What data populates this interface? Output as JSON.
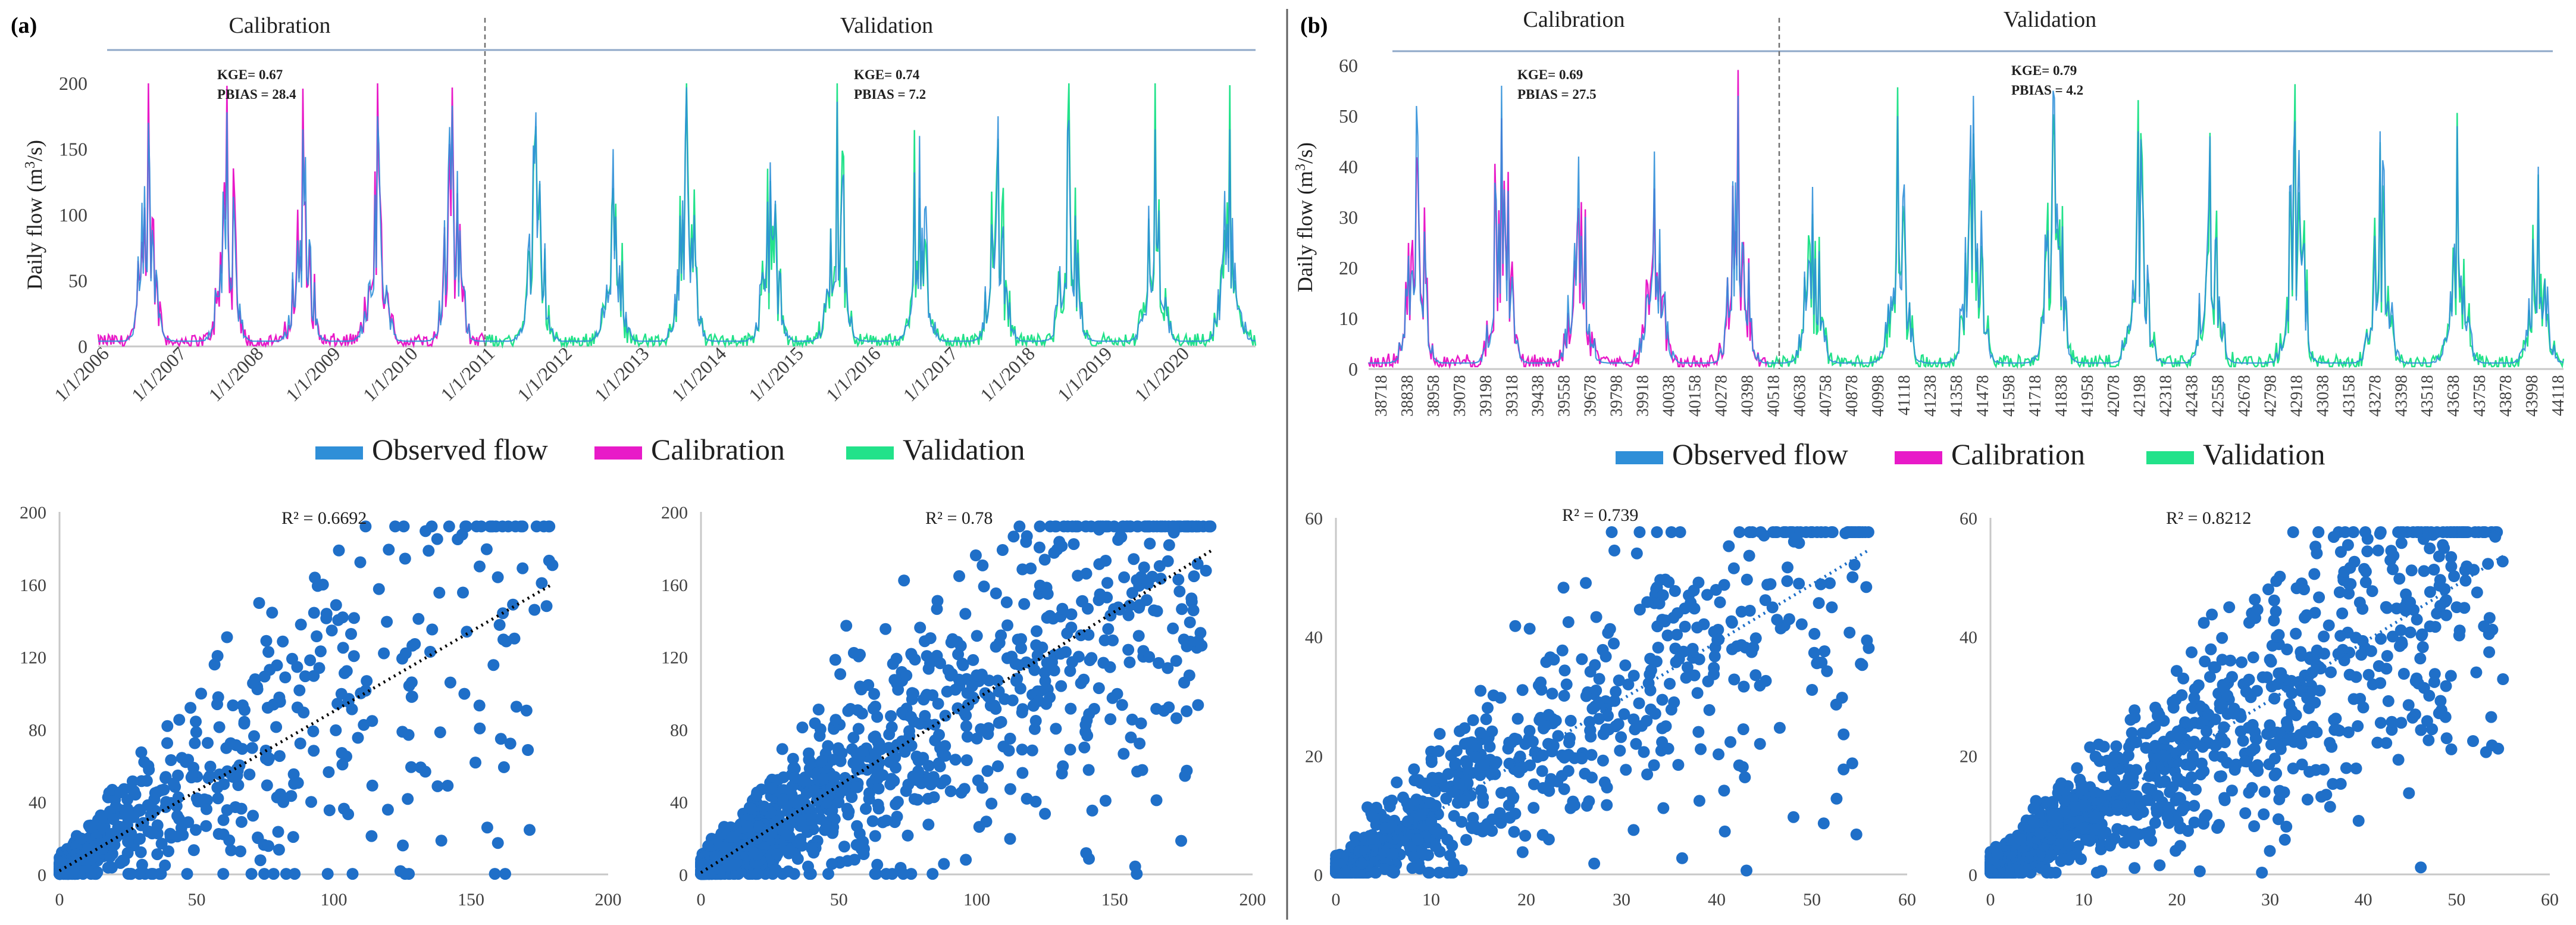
{
  "panels": [
    {
      "label": "(a)",
      "period_labels": {
        "calibration": "Calibration",
        "validation": "Validation"
      },
      "time_series": {
        "type": "line",
        "ylabel_prefix": "Daily flow (m",
        "ylabel_sup": "3",
        "ylabel_suffix": "/s)",
        "ylim": [
          0,
          200
        ],
        "yticks": [
          "0",
          "50",
          "100",
          "150",
          "200"
        ],
        "xlabels": [
          "1/1/2006",
          "1/1/2007",
          "1/1/2008",
          "1/1/2009",
          "1/1/2010",
          "1/1/2011",
          "1/1/2012",
          "1/1/2013",
          "1/1/2014",
          "1/1/2015",
          "1/1/2016",
          "1/1/2017",
          "1/1/2018",
          "1/1/2019",
          "1/1/2020"
        ],
        "n_years": 15,
        "split_year_index": 5,
        "calibration_peaks": [
          170,
          178,
          165,
          175,
          183
        ],
        "validation_peaks": [
          178,
          150,
          197,
          140,
          186,
          160,
          175,
          172,
          165,
          165
        ],
        "stats": [
          {
            "kge": "KGE= 0.67",
            "pbias": "PBIAS = 28.4"
          },
          {
            "kge": "KGE= 0.74",
            "pbias": "PBIAS = 7.2"
          }
        ],
        "legend": [
          "Observed flow",
          "Calibration",
          "Validation"
        ]
      },
      "scatters": [
        {
          "type": "scatter",
          "r2_label": "R² = 0.6692",
          "xlim": [
            0,
            200
          ],
          "ylim": [
            0,
            200
          ],
          "xticks": [
            "0",
            "50",
            "100",
            "150",
            "200"
          ],
          "yticks": [
            "0",
            "40",
            "80",
            "120",
            "160",
            "200"
          ],
          "trend": {
            "slope": 0.88,
            "intercept": 2
          },
          "n_points": 600,
          "max_x": 180,
          "spread": 0.45
        },
        {
          "type": "scatter",
          "r2_label": "R² = 0.78",
          "xlim": [
            0,
            200
          ],
          "ylim": [
            0,
            200
          ],
          "xticks": [
            "0",
            "50",
            "100",
            "150",
            "200"
          ],
          "yticks": [
            "0",
            "40",
            "80",
            "120",
            "160",
            "200"
          ],
          "trend": {
            "slope": 0.96,
            "intercept": 1
          },
          "n_points": 1400,
          "max_x": 185,
          "spread": 0.38
        }
      ]
    },
    {
      "label": "(b)",
      "period_labels": {
        "calibration": "Calibration",
        "validation": "Validation"
      },
      "time_series": {
        "type": "line",
        "ylabel_prefix": "Daily flow (m",
        "ylabel_sup": "3",
        "ylabel_suffix": "/s)",
        "ylim": [
          0,
          60
        ],
        "yticks": [
          "0",
          "10",
          "20",
          "30",
          "40",
          "50",
          "60"
        ],
        "xlabels": [
          "38718",
          "38838",
          "38958",
          "39078",
          "39198",
          "39318",
          "39438",
          "39558",
          "39678",
          "39798",
          "39918",
          "40038",
          "40158",
          "40278",
          "40398",
          "40518",
          "40638",
          "40758",
          "40878",
          "40998",
          "41118",
          "41238",
          "41358",
          "41478",
          "41598",
          "41718",
          "41838",
          "41958",
          "42078",
          "42198",
          "42318",
          "42438",
          "42558",
          "42678",
          "42798",
          "42918",
          "43038",
          "43158",
          "43278",
          "43398",
          "43518",
          "43638",
          "43758",
          "43878",
          "43998",
          "44118"
        ],
        "n_years": 15,
        "split_year_index": 5,
        "calibration_peaks": [
          52,
          56,
          42,
          43,
          54
        ],
        "validation_peaks": [
          36,
          50,
          54,
          55,
          47,
          46,
          49,
          47,
          48,
          40
        ],
        "stats": [
          {
            "kge": "KGE= 0.69",
            "pbias": "PBIAS = 27.5"
          },
          {
            "kge": "KGE= 0.79",
            "pbias": "PBIAS = 4.2"
          }
        ],
        "legend": [
          "Observed flow",
          "Calibration",
          "Validation"
        ]
      },
      "scatters": [
        {
          "type": "scatter",
          "r2_label": "R² = 0.739",
          "xlim": [
            0,
            60
          ],
          "ylim": [
            0,
            60
          ],
          "xticks": [
            "0",
            "10",
            "20",
            "30",
            "40",
            "50",
            "60"
          ],
          "yticks": [
            "0",
            "20",
            "40",
            "60"
          ],
          "trend": {
            "slope": 0.97,
            "intercept": 0.3
          },
          "n_points": 900,
          "max_x": 56,
          "spread": 0.35
        },
        {
          "type": "scatter",
          "r2_label": "R² = 0.8212",
          "xlim": [
            0,
            60
          ],
          "ylim": [
            0,
            60
          ],
          "xticks": [
            "0",
            "10",
            "20",
            "30",
            "40",
            "50",
            "60"
          ],
          "yticks": [
            "0",
            "20",
            "40",
            "60"
          ],
          "trend": {
            "slope": 0.97,
            "intercept": 0.2
          },
          "n_points": 1400,
          "max_x": 55,
          "spread": 0.3
        }
      ]
    }
  ],
  "colors": {
    "observed": "#2F8FD8",
    "calibration": "#E81AC8",
    "validation": "#22E28A",
    "scatter_point": "#1F6FC8",
    "trend_a": "#000000",
    "trend_b": "#1F6FC8",
    "axis": "#C8C8C8",
    "text": "#404040"
  }
}
